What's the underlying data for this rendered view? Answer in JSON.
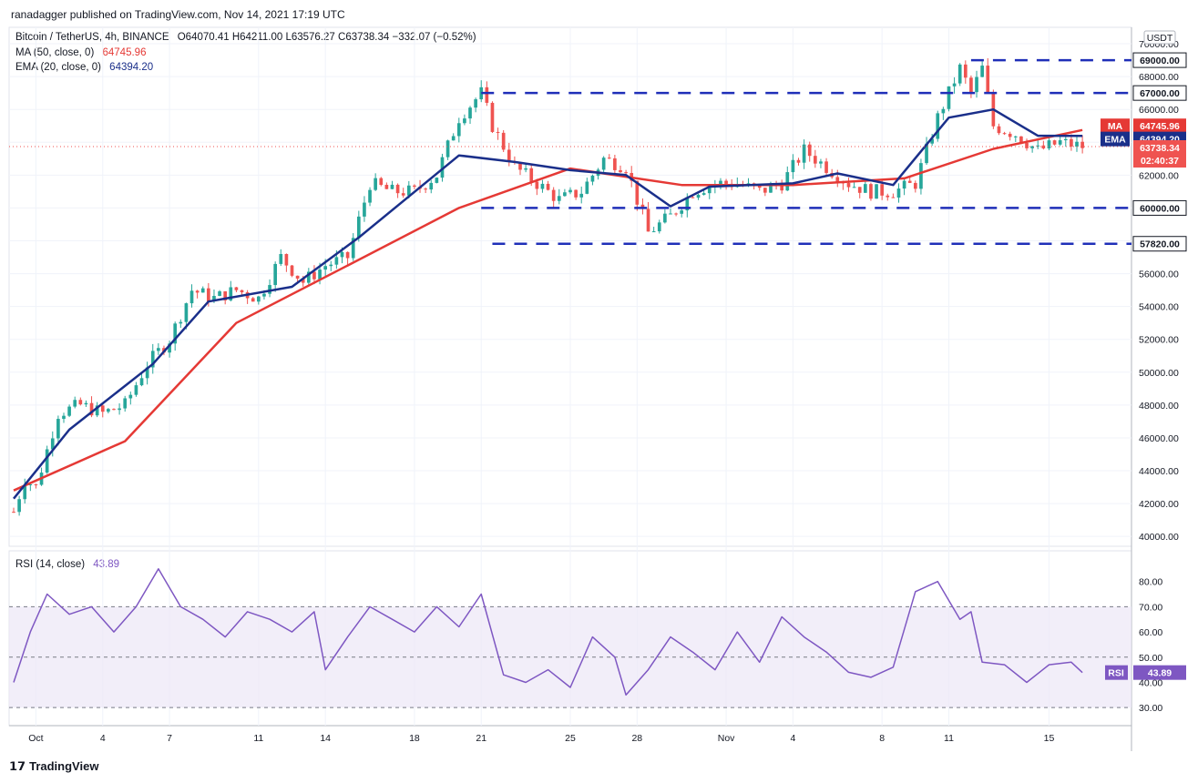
{
  "publisher_line": "ranadagger published on TradingView.com, Nov 14, 2021 17:19 UTC",
  "legend": {
    "symbol": "Bitcoin / TetherUS, 4h, BINANCE",
    "ohlc": "O64070.41  H64211.00  L63576.27  C63738.34  −332.07 (−0.52%)",
    "ma_label": "MA (50, close, 0)",
    "ma_value": "64745.96",
    "ema_label": "EMA (20, close, 0)",
    "ema_value": "64394.20",
    "rsi_label": "RSI (14, close)",
    "rsi_value": "43.89"
  },
  "currency": "USDT",
  "footer": "TradingView",
  "colors": {
    "ma": "#e53935",
    "ema": "#1a2f8a",
    "up": "#26a69a",
    "down": "#ef5350",
    "rsi": "#7e57c2",
    "lines": "#1f2fb8"
  },
  "chart_data": {
    "type": "candlestick",
    "price_axis": {
      "ticks": [
        "40000.00",
        "42000.00",
        "44000.00",
        "46000.00",
        "48000.00",
        "50000.00",
        "52000.00",
        "54000.00",
        "56000.00",
        "58000.00",
        "60000.00",
        "62000.00",
        "64000.00",
        "66000.00",
        "68000.00",
        "70000.00"
      ],
      "range": [
        39400,
        71000
      ]
    },
    "time_axis": {
      "ticks": [
        "Oct",
        "4",
        "7",
        "11",
        "14",
        "18",
        "21",
        "25",
        "28",
        "Nov",
        "4",
        "8",
        "11",
        "15"
      ]
    },
    "horizontal_levels": [
      {
        "label": "69000.00",
        "value": 69000
      },
      {
        "label": "67000.00",
        "value": 67000
      },
      {
        "label": "60000.00",
        "value": 60000
      },
      {
        "label": "57820.00",
        "value": 57820
      }
    ],
    "price_tags": [
      {
        "series": "MA",
        "value": "64745.96"
      },
      {
        "series": "EMA",
        "value": "64394.20"
      },
      {
        "series": "last",
        "value": "63738.34",
        "countdown": "02:40:37"
      }
    ],
    "close_path": [
      [
        0,
        41500
      ],
      [
        2,
        43500
      ],
      [
        4,
        43000
      ],
      [
        8,
        47500
      ],
      [
        12,
        48000
      ],
      [
        16,
        47500
      ],
      [
        20,
        48000
      ],
      [
        24,
        50500
      ],
      [
        28,
        52000
      ],
      [
        32,
        55000
      ],
      [
        36,
        54500
      ],
      [
        40,
        55000
      ],
      [
        44,
        54500
      ],
      [
        48,
        57000
      ],
      [
        52,
        55500
      ],
      [
        56,
        56500
      ],
      [
        60,
        57000
      ],
      [
        64,
        61500
      ],
      [
        68,
        61000
      ],
      [
        72,
        61000
      ],
      [
        76,
        62000
      ],
      [
        80,
        65500
      ],
      [
        84,
        67000
      ],
      [
        86,
        65000
      ],
      [
        90,
        62500
      ],
      [
        94,
        61500
      ],
      [
        98,
        60500
      ],
      [
        102,
        61000
      ],
      [
        106,
        63000
      ],
      [
        110,
        62500
      ],
      [
        114,
        58500
      ],
      [
        118,
        59500
      ],
      [
        122,
        61000
      ],
      [
        126,
        61500
      ],
      [
        130,
        61500
      ],
      [
        134,
        61000
      ],
      [
        138,
        61500
      ],
      [
        142,
        63500
      ],
      [
        146,
        62500
      ],
      [
        150,
        61500
      ],
      [
        154,
        61000
      ],
      [
        158,
        61000
      ],
      [
        162,
        61500
      ],
      [
        166,
        65500
      ],
      [
        170,
        68500
      ],
      [
        172,
        67000
      ],
      [
        174,
        68500
      ],
      [
        176,
        65000
      ],
      [
        180,
        64500
      ],
      [
        184,
        63500
      ],
      [
        188,
        64000
      ],
      [
        192,
        63738
      ]
    ],
    "ma50": [
      [
        0,
        42800
      ],
      [
        20,
        45800
      ],
      [
        40,
        53000
      ],
      [
        60,
        56500
      ],
      [
        80,
        60000
      ],
      [
        100,
        62400
      ],
      [
        120,
        61400
      ],
      [
        140,
        61400
      ],
      [
        160,
        61800
      ],
      [
        176,
        63600
      ],
      [
        192,
        64746
      ]
    ],
    "ema20": [
      [
        0,
        42300
      ],
      [
        10,
        46500
      ],
      [
        25,
        50500
      ],
      [
        35,
        54300
      ],
      [
        50,
        55200
      ],
      [
        62,
        58200
      ],
      [
        80,
        63200
      ],
      [
        90,
        62800
      ],
      [
        100,
        62300
      ],
      [
        110,
        62000
      ],
      [
        118,
        60100
      ],
      [
        125,
        61300
      ],
      [
        140,
        61500
      ],
      [
        148,
        62100
      ],
      [
        158,
        61400
      ],
      [
        168,
        65500
      ],
      [
        176,
        66000
      ],
      [
        184,
        64400
      ],
      [
        192,
        64394
      ]
    ],
    "rsi": {
      "ticks": [
        "30.00",
        "40.00",
        "50.00",
        "60.00",
        "70.00",
        "80.00"
      ],
      "bands": [
        30,
        50,
        70
      ],
      "values": [
        [
          0,
          40
        ],
        [
          3,
          60
        ],
        [
          6,
          75
        ],
        [
          10,
          67
        ],
        [
          14,
          70
        ],
        [
          18,
          60
        ],
        [
          22,
          70
        ],
        [
          26,
          85
        ],
        [
          30,
          70
        ],
        [
          34,
          65
        ],
        [
          38,
          58
        ],
        [
          42,
          68
        ],
        [
          46,
          65
        ],
        [
          50,
          60
        ],
        [
          54,
          68
        ],
        [
          56,
          45
        ],
        [
          60,
          58
        ],
        [
          64,
          70
        ],
        [
          68,
          65
        ],
        [
          72,
          60
        ],
        [
          76,
          70
        ],
        [
          80,
          62
        ],
        [
          84,
          75
        ],
        [
          88,
          43
        ],
        [
          92,
          40
        ],
        [
          96,
          45
        ],
        [
          100,
          38
        ],
        [
          104,
          58
        ],
        [
          108,
          50
        ],
        [
          110,
          35
        ],
        [
          114,
          45
        ],
        [
          118,
          58
        ],
        [
          122,
          52
        ],
        [
          126,
          45
        ],
        [
          130,
          60
        ],
        [
          134,
          48
        ],
        [
          138,
          66
        ],
        [
          142,
          58
        ],
        [
          146,
          52
        ],
        [
          150,
          44
        ],
        [
          154,
          42
        ],
        [
          158,
          46
        ],
        [
          162,
          76
        ],
        [
          166,
          80
        ],
        [
          170,
          65
        ],
        [
          172,
          68
        ],
        [
          174,
          48
        ],
        [
          178,
          47
        ],
        [
          182,
          40
        ],
        [
          186,
          47
        ],
        [
          190,
          48
        ],
        [
          192,
          43.89
        ]
      ]
    }
  }
}
